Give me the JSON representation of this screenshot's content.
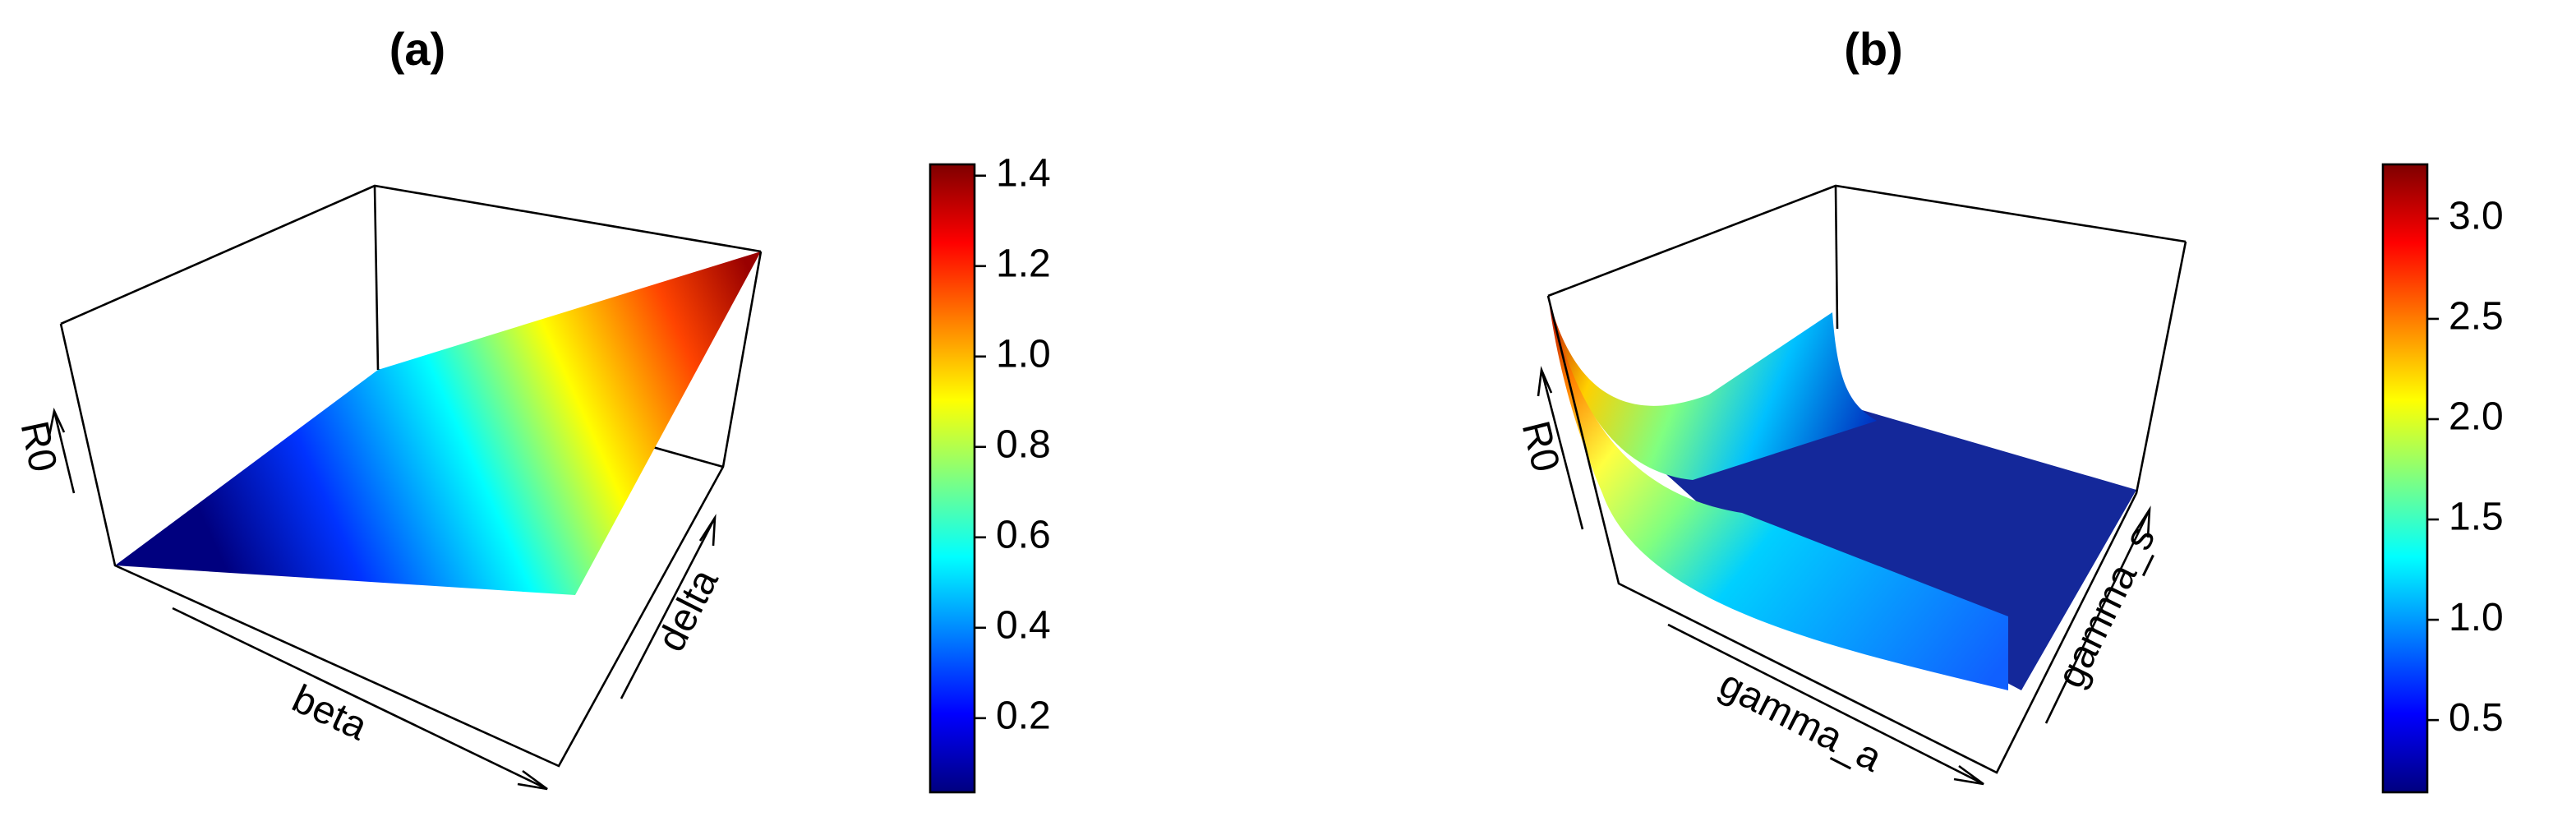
{
  "chart_data": [
    {
      "type": "surface",
      "title": "(a)",
      "xlabel": "beta",
      "ylabel": "delta",
      "zlabel": "R0",
      "colorbar_lim": [
        0.036,
        1.425
      ],
      "colorbar_ticks": [
        0.2,
        0.4,
        0.6,
        0.8,
        {
          "value": 1,
          "label": "1.0"
        },
        1.2,
        1.4
      ]
    },
    {
      "type": "surface",
      "title": "(b)",
      "xlabel": "gamma_a",
      "ylabel": "gamma_s",
      "zlabel": "R0",
      "colorbar_lim": [
        0.14,
        3.27
      ],
      "colorbar_ticks": [
        0.5,
        {
          "value": 1,
          "label": "1.0"
        },
        1.5,
        {
          "value": 2,
          "label": "2.0"
        },
        2.5,
        {
          "value": 3,
          "label": "3.0"
        }
      ]
    }
  ]
}
